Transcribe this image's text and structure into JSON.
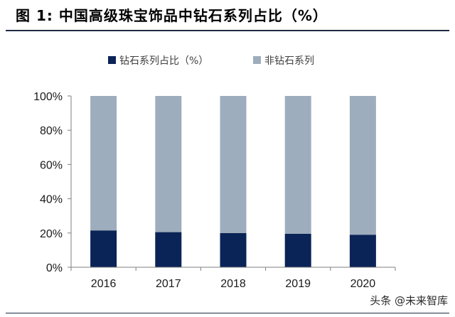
{
  "figure_title": "图 1:  中国高级珠宝饰品中钻石系列占比（%）",
  "watermark": "头条 @未来智库",
  "colors": {
    "diamond": "#0a2457",
    "non_diamond": "#9eadbd",
    "axis": "#7f7f7f",
    "rule": "#1f2a44"
  },
  "chart_data": {
    "type": "bar",
    "stacked": true,
    "categories": [
      "2016",
      "2017",
      "2018",
      "2019",
      "2020"
    ],
    "series": [
      {
        "name": "钻石系列占比（%）",
        "values": [
          21.5,
          20.5,
          20.0,
          19.5,
          19.0
        ]
      },
      {
        "name": "非钻石系列",
        "values": [
          78.5,
          79.5,
          80.0,
          80.5,
          81.0
        ]
      }
    ],
    "yticks": [
      "0%",
      "20%",
      "40%",
      "60%",
      "80%",
      "100%"
    ],
    "ylim": [
      0,
      100
    ],
    "legend_position": "top-center",
    "grid": false
  }
}
